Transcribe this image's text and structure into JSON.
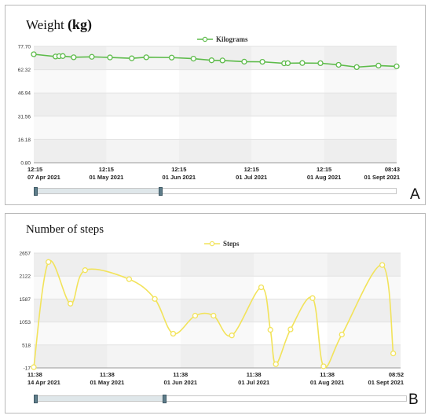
{
  "panelA": {
    "title_main": "Weight",
    "title_unit": "(kg)",
    "badge": "A",
    "legend": "Kilograms",
    "color": "#5dbb4a",
    "y_ticks": [
      "77.70",
      "62.32",
      "46.94",
      "31.56",
      "16.18",
      "0.80"
    ],
    "x_labels": [
      {
        "time": "12:15",
        "date": "07 Apr 2021"
      },
      {
        "time": "12:15",
        "date": "01 May 2021"
      },
      {
        "time": "12:15",
        "date": "01 Jun 2021"
      },
      {
        "time": "12:15",
        "date": "01 Jul 2021"
      },
      {
        "time": "12:15",
        "date": "01 Aug 2021"
      },
      {
        "time": "08:43",
        "date": "01 Sept 2021"
      }
    ],
    "navigator": {
      "start": 0.0,
      "end": 0.35
    }
  },
  "panelB": {
    "title": "Number of steps",
    "badge": "B",
    "legend": "Steps",
    "color": "#f2e35a",
    "y_ticks": [
      "2657",
      "2122",
      "1587",
      "1053",
      "518",
      "-17"
    ],
    "x_labels": [
      {
        "time": "11:38",
        "date": "14 Apr 2021"
      },
      {
        "time": "11:38",
        "date": "01 May 2021"
      },
      {
        "time": "11:38",
        "date": "01 Jun 2021"
      },
      {
        "time": "11:38",
        "date": "01 Jul 2021"
      },
      {
        "time": "11:38",
        "date": "01 Aug 2021"
      },
      {
        "time": "08:52",
        "date": "01 Sept 2021"
      }
    ],
    "navigator": {
      "start": 0.0,
      "end": 0.35
    }
  },
  "chart_data": [
    {
      "type": "line",
      "title": "Weight (kg)",
      "series": [
        {
          "name": "Kilograms",
          "values": [
            72.5,
            71.0,
            71.2,
            71.3,
            70.5,
            70.8,
            70.4,
            69.8,
            70.5,
            70.3,
            69.6,
            68.5,
            68.4,
            67.6,
            67.5,
            66.5,
            66.6,
            66.7,
            66.6,
            65.5,
            64.0,
            65.0,
            64.5
          ]
        }
      ],
      "x": [
        0.0,
        0.06,
        0.07,
        0.08,
        0.11,
        0.16,
        0.21,
        0.27,
        0.31,
        0.38,
        0.44,
        0.49,
        0.52,
        0.58,
        0.63,
        0.69,
        0.7,
        0.74,
        0.79,
        0.84,
        0.89,
        0.95,
        1.0
      ],
      "ylim": [
        0.8,
        77.7
      ],
      "grid": true,
      "legend": "top-center"
    },
    {
      "type": "line",
      "title": "Number of steps",
      "series": [
        {
          "name": "Steps",
          "values": [
            0,
            2450,
            1480,
            2260,
            2050,
            1590,
            780,
            1200,
            1200,
            740,
            1860,
            870,
            70,
            880,
            1610,
            20,
            760,
            2380,
            320
          ]
        }
      ],
      "x": [
        0.0,
        0.04,
        0.1,
        0.14,
        0.26,
        0.33,
        0.38,
        0.44,
        0.49,
        0.54,
        0.62,
        0.645,
        0.66,
        0.7,
        0.76,
        0.79,
        0.84,
        0.95,
        0.98
      ],
      "ylim": [
        -17,
        2657
      ],
      "grid": true,
      "legend": "top-center"
    }
  ]
}
